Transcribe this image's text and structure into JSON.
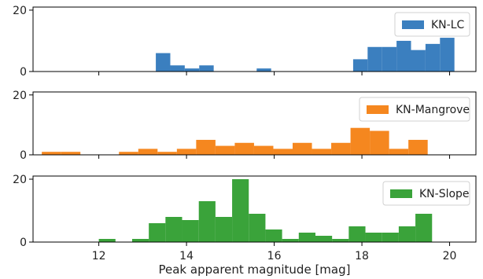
{
  "chart_data": {
    "type": "bar",
    "xlabel": "Peak apparent magnitude [mag]",
    "xlim": [
      10.5,
      20.6
    ],
    "x_ticks": [
      "12",
      "14",
      "16",
      "18",
      "20"
    ],
    "shared_x": true,
    "legend_placement": "top-right",
    "panels": [
      {
        "series_name": "KN-LC",
        "color": "#3b7fbf",
        "ylim": [
          0,
          21
        ],
        "y_ticks": [
          "0",
          "20"
        ],
        "bin_width": 0.33,
        "bin_starts": [
          13.3,
          13.63,
          13.96,
          14.29,
          15.6,
          17.8,
          18.13,
          18.46,
          18.79,
          19.12,
          19.45,
          19.78
        ],
        "counts": [
          6,
          2,
          1,
          2,
          1,
          4,
          8,
          8,
          10,
          7,
          9,
          11
        ]
      },
      {
        "series_name": "KN-Mangrove",
        "color": "#f5871f",
        "ylim": [
          0,
          21
        ],
        "y_ticks": [
          "0",
          "20"
        ],
        "bin_width": 0.44,
        "bin_starts": [
          10.7,
          11.14,
          11.58,
          12.02,
          12.46,
          12.9,
          13.34,
          13.78,
          14.22,
          14.66,
          15.1,
          15.54,
          15.98,
          16.42,
          16.86,
          17.3,
          17.74,
          18.18,
          18.62,
          19.06,
          19.5
        ],
        "counts": [
          1,
          1,
          0,
          0,
          1,
          2,
          1,
          2,
          5,
          3,
          4,
          3,
          2,
          4,
          2,
          4,
          9,
          8,
          2,
          5,
          0
        ]
      },
      {
        "series_name": "KN-Slope",
        "color": "#3aa33a",
        "ylim": [
          0,
          21
        ],
        "y_ticks": [
          "0",
          "20"
        ],
        "bin_width": 0.38,
        "bin_starts": [
          12.0,
          12.38,
          12.76,
          13.14,
          13.52,
          13.9,
          14.28,
          14.66,
          15.04,
          15.42,
          15.8,
          16.18,
          16.56,
          16.94,
          17.32,
          17.7,
          18.08,
          18.46,
          18.84,
          19.22,
          19.6
        ],
        "counts": [
          1,
          0,
          1,
          6,
          8,
          7,
          13,
          8,
          20,
          9,
          4,
          1,
          3,
          2,
          1,
          5,
          3,
          3,
          5,
          9,
          0
        ]
      }
    ]
  }
}
